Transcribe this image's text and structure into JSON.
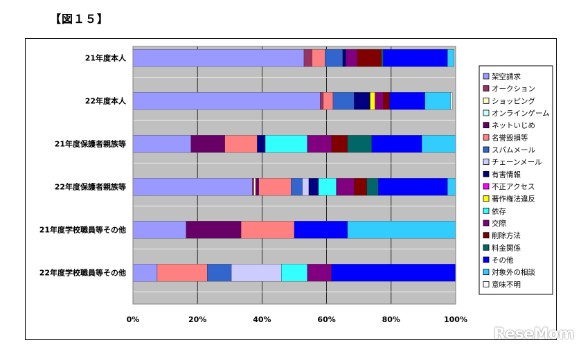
{
  "figure": {
    "title": "【図１５】"
  },
  "watermark": {
    "text": "ReseMom"
  },
  "chart_data": {
    "type": "bar",
    "orientation": "horizontal",
    "stacked": "percent",
    "title": "【図１５】",
    "xlabel": "",
    "ylabel": "",
    "xlim": [
      0,
      100
    ],
    "grid": true,
    "legend_position": "right",
    "x_ticks": [
      "0%",
      "20%",
      "40%",
      "60%",
      "80%",
      "100%"
    ],
    "categories": [
      "21年度本人",
      "22年度本人",
      "21年度保護者親族等",
      "22年度保護者親族等",
      "21年度学校職員等その他",
      "22年度学校職員等その他"
    ],
    "series": [
      {
        "name": "架空請求",
        "color": "#9999FF",
        "values": [
          53,
          58,
          18,
          37,
          16.5,
          7.5
        ]
      },
      {
        "name": "オークション",
        "color": "#993366",
        "values": [
          2.5,
          1,
          0,
          0.5,
          0,
          0
        ]
      },
      {
        "name": "ショッピング",
        "color": "#FFFFCC",
        "values": [
          0,
          0,
          0,
          0.5,
          0,
          0
        ]
      },
      {
        "name": "オンラインゲーム",
        "color": "#CCFFFF",
        "values": [
          0,
          0,
          0,
          0,
          0,
          0
        ]
      },
      {
        "name": "ネットいじめ",
        "color": "#660066",
        "values": [
          0,
          0,
          10.5,
          1,
          17,
          0
        ]
      },
      {
        "name": "名誉毀損等",
        "color": "#FF8080",
        "values": [
          4,
          3,
          10,
          10,
          16.5,
          15.5
        ]
      },
      {
        "name": "スパムメール",
        "color": "#3366CC",
        "values": [
          5.5,
          6.5,
          0,
          3.5,
          0,
          7.5
        ]
      },
      {
        "name": "チェーンメール",
        "color": "#CCCCFF",
        "values": [
          0,
          0,
          0,
          2,
          0,
          15.5
        ]
      },
      {
        "name": "有害情報",
        "color": "#000080",
        "values": [
          1,
          5,
          2.5,
          3,
          0,
          0
        ]
      },
      {
        "name": "不正アクセス",
        "color": "#FF00FF",
        "values": [
          0,
          0,
          0,
          0,
          0,
          0
        ]
      },
      {
        "name": "著作権法違反",
        "color": "#FFFF00",
        "values": [
          0,
          1.5,
          0,
          0,
          0,
          0
        ]
      },
      {
        "name": "依存",
        "color": "#33FFFF",
        "values": [
          0,
          0,
          13,
          5.5,
          0,
          8
        ]
      },
      {
        "name": "交際",
        "color": "#800080",
        "values": [
          3.5,
          2.5,
          7.5,
          5.5,
          0,
          7.5
        ]
      },
      {
        "name": "削除方法",
        "color": "#800000",
        "values": [
          7.5,
          2,
          5,
          4,
          0,
          0
        ]
      },
      {
        "name": "料金関係",
        "color": "#006666",
        "values": [
          0.5,
          0,
          7.5,
          3.5,
          0,
          0
        ]
      },
      {
        "name": "その他",
        "color": "#0000FF",
        "values": [
          20,
          11,
          15.5,
          21.5,
          16.5,
          38.5
        ]
      },
      {
        "name": "対象外の相談",
        "color": "#33CCFF",
        "values": [
          2,
          8,
          10.5,
          2.5,
          33.5,
          0
        ]
      },
      {
        "name": "意味不明",
        "color": "#FFFFFF",
        "values": [
          0,
          0.5,
          0,
          0,
          0,
          0
        ]
      }
    ]
  }
}
